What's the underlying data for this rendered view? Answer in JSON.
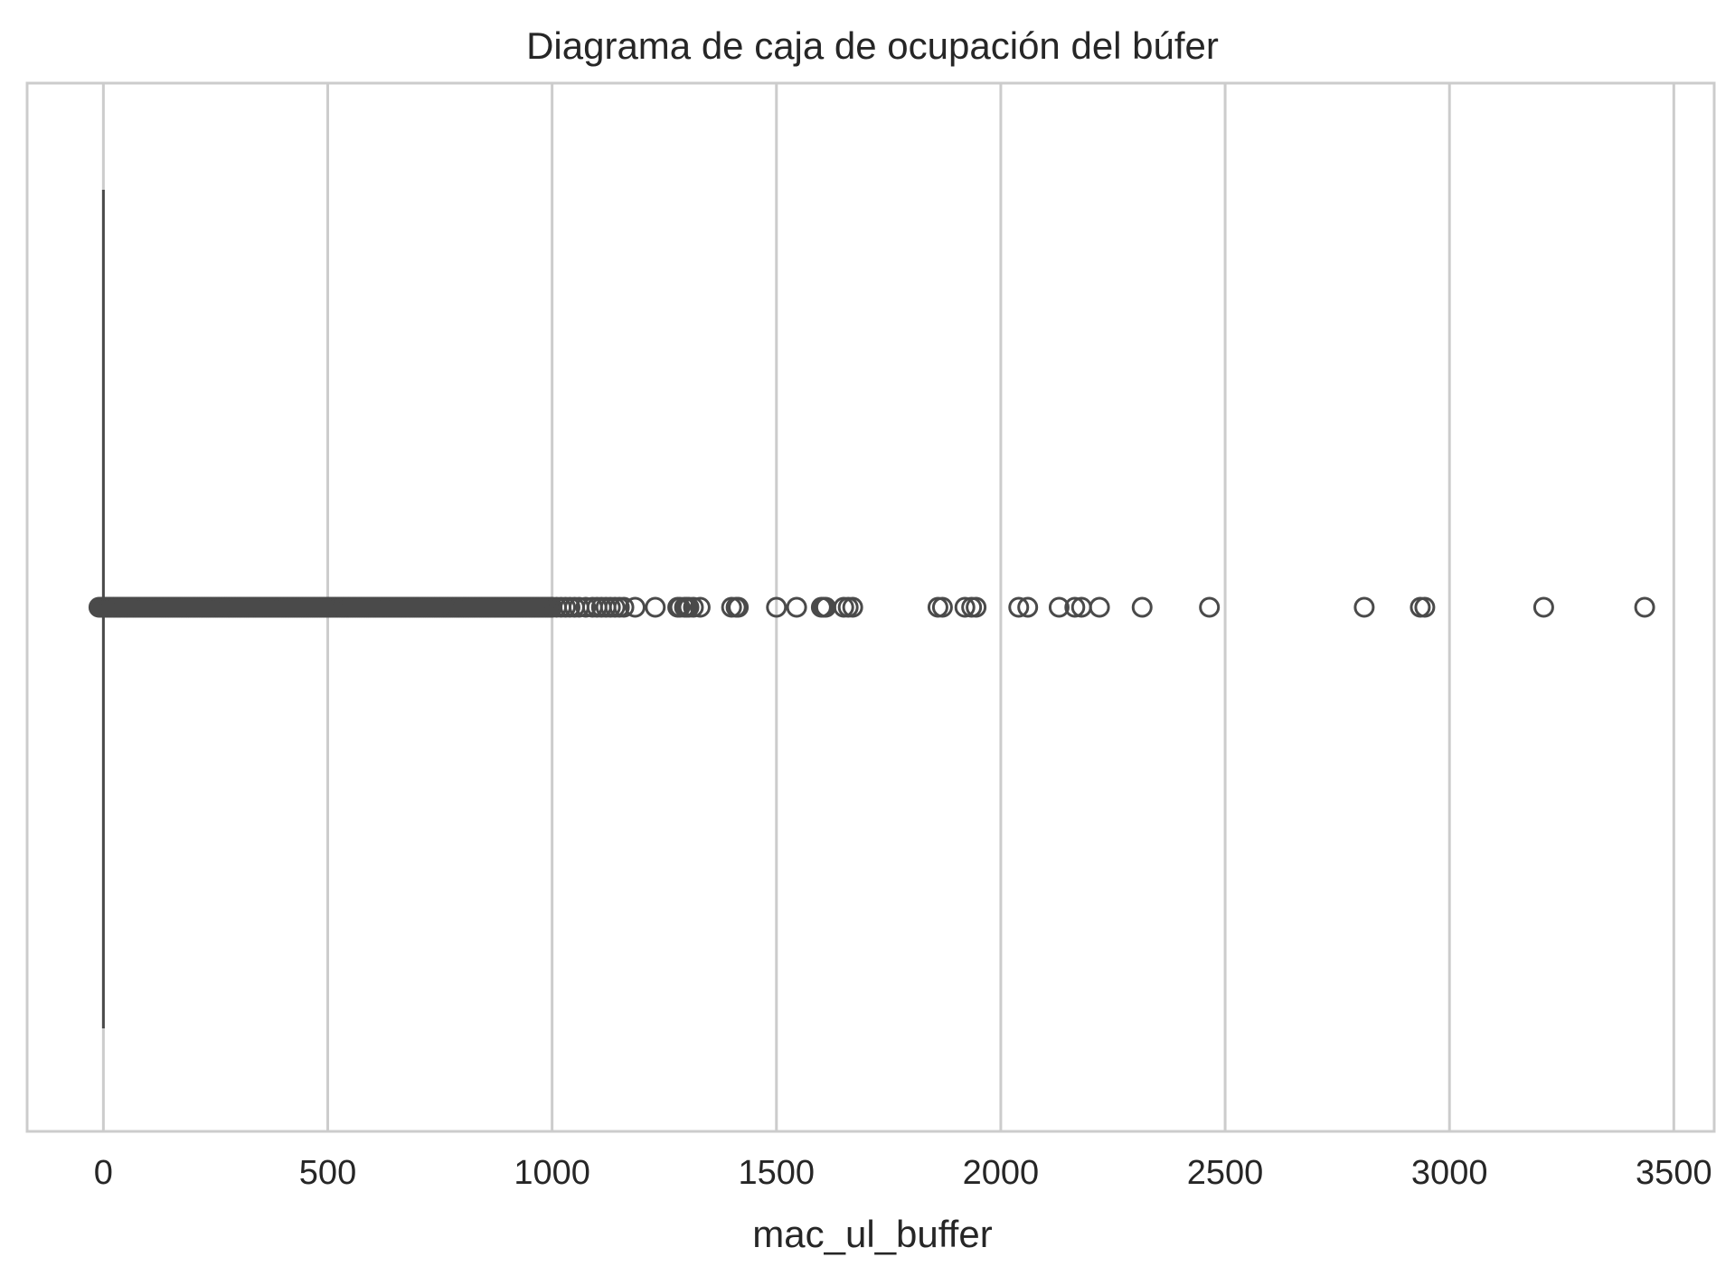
{
  "chart_data": {
    "type": "box",
    "title": "Diagrama de caja de ocupación del búfer",
    "xlabel": "mac_ul_buffer",
    "ylabel": "",
    "orientation": "horizontal",
    "xlim": [
      -170,
      3590
    ],
    "xticks": [
      0,
      500,
      1000,
      1500,
      2000,
      2500,
      3000,
      3500
    ],
    "xtick_labels": [
      "0",
      "500",
      "1000",
      "1500",
      "2000",
      "2500",
      "3000",
      "3500"
    ],
    "grid": "vertical",
    "box": {
      "q1": 0,
      "median": 0,
      "q3": 0,
      "whisker_low": 0,
      "whisker_high": 0
    },
    "outliers_dense_range": [
      -10,
      1000
    ],
    "outliers": [
      1000,
      1010,
      1020,
      1030,
      1040,
      1050,
      1060,
      1075,
      1090,
      1100,
      1110,
      1120,
      1130,
      1140,
      1150,
      1160,
      1185,
      1230,
      1280,
      1285,
      1295,
      1300,
      1305,
      1315,
      1330,
      1400,
      1410,
      1415,
      1500,
      1545,
      1600,
      1605,
      1610,
      1650,
      1660,
      1670,
      1860,
      1870,
      1920,
      1935,
      1945,
      2040,
      2060,
      2130,
      2165,
      2180,
      2220,
      2315,
      2465,
      2810,
      2935,
      2945,
      3210,
      3435
    ],
    "colors": {
      "stroke": "#4a4a4a",
      "grid": "#cccccc",
      "frame": "#cccccc",
      "text": "#262626"
    }
  }
}
